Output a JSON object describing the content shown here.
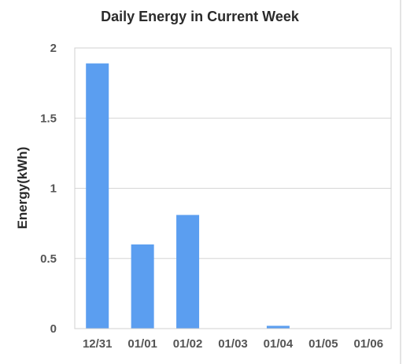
{
  "chart_data": {
    "type": "bar",
    "title": "Daily Energy in Current Week",
    "xlabel": "",
    "ylabel": "Energy(kWh)",
    "categories": [
      "12/31",
      "01/01",
      "01/02",
      "01/03",
      "01/04",
      "01/05",
      "01/06"
    ],
    "values": [
      1.89,
      0.6,
      0.81,
      0,
      0.02,
      0,
      0
    ],
    "ylim": [
      0,
      2
    ],
    "yticks": [
      0,
      0.5,
      1,
      1.5,
      2
    ],
    "ytick_labels": [
      "0",
      "0.5",
      "1",
      "1.5",
      "2"
    ],
    "grid": true,
    "legend": "none",
    "bar_color": "#5b9ef0"
  }
}
